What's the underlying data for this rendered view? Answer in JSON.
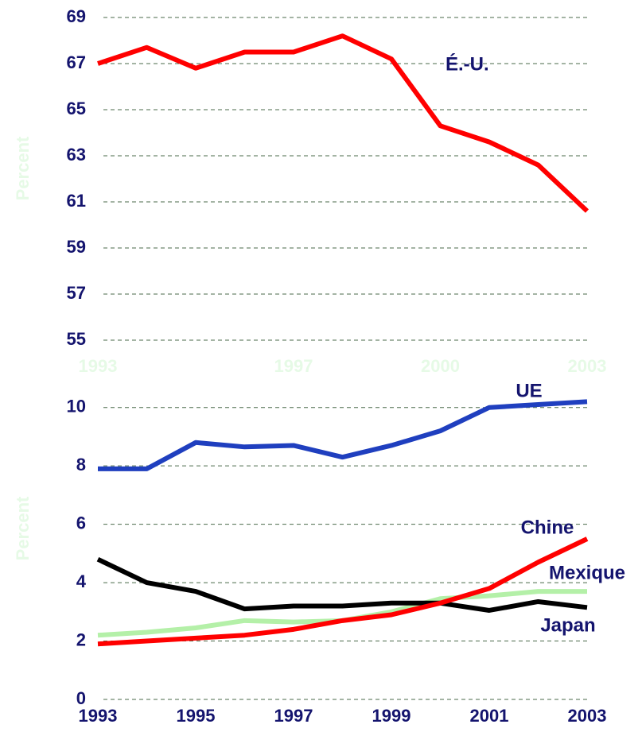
{
  "chart_data": [
    {
      "type": "line",
      "ylabel": "Percent",
      "x": [
        1993,
        1994,
        1995,
        1996,
        1997,
        1998,
        1999,
        2000,
        2001,
        2002,
        2003
      ],
      "xlim": [
        1993,
        2003
      ],
      "xticks": [
        1993,
        1997,
        2000,
        2003
      ],
      "xtick_color": "#e6fae6",
      "ylim": [
        55,
        69
      ],
      "yticks": [
        55,
        57,
        59,
        61,
        63,
        65,
        67,
        69
      ],
      "grid": true,
      "series": [
        {
          "name": "É.-U.",
          "color": "#ff0000",
          "values": [
            67.0,
            67.7,
            66.8,
            67.5,
            67.5,
            68.2,
            67.2,
            64.3,
            63.6,
            62.6,
            60.6
          ]
        }
      ]
    },
    {
      "type": "line",
      "ylabel": "Percent",
      "x": [
        1993,
        1994,
        1995,
        1996,
        1997,
        1998,
        1999,
        2000,
        2001,
        2002,
        2003
      ],
      "xlim": [
        1993,
        2003
      ],
      "xticks": [
        1993,
        1995,
        1997,
        1999,
        2001,
        2003
      ],
      "xtick_color": "#14146e",
      "ylim": [
        0,
        11
      ],
      "yticks": [
        0,
        2,
        4,
        6,
        8,
        10
      ],
      "grid": true,
      "series": [
        {
          "name": "Mexique",
          "color": "#b4f0a8",
          "values": [
            2.2,
            2.3,
            2.45,
            2.7,
            2.65,
            2.7,
            3.0,
            3.45,
            3.55,
            3.7,
            3.7
          ]
        },
        {
          "name": "Japan",
          "color": "#000000",
          "values": [
            4.8,
            4.0,
            3.7,
            3.1,
            3.2,
            3.2,
            3.3,
            3.3,
            3.05,
            3.35,
            3.15
          ]
        },
        {
          "name": "Chine",
          "color": "#ff0000",
          "values": [
            1.9,
            2.0,
            2.1,
            2.2,
            2.4,
            2.7,
            2.9,
            3.3,
            3.8,
            4.7,
            5.5
          ]
        },
        {
          "name": "UE",
          "color": "#1f3fbf",
          "values": [
            7.9,
            7.9,
            8.8,
            8.65,
            8.7,
            8.3,
            8.7,
            9.2,
            10.0,
            10.1,
            10.2
          ]
        }
      ]
    }
  ]
}
